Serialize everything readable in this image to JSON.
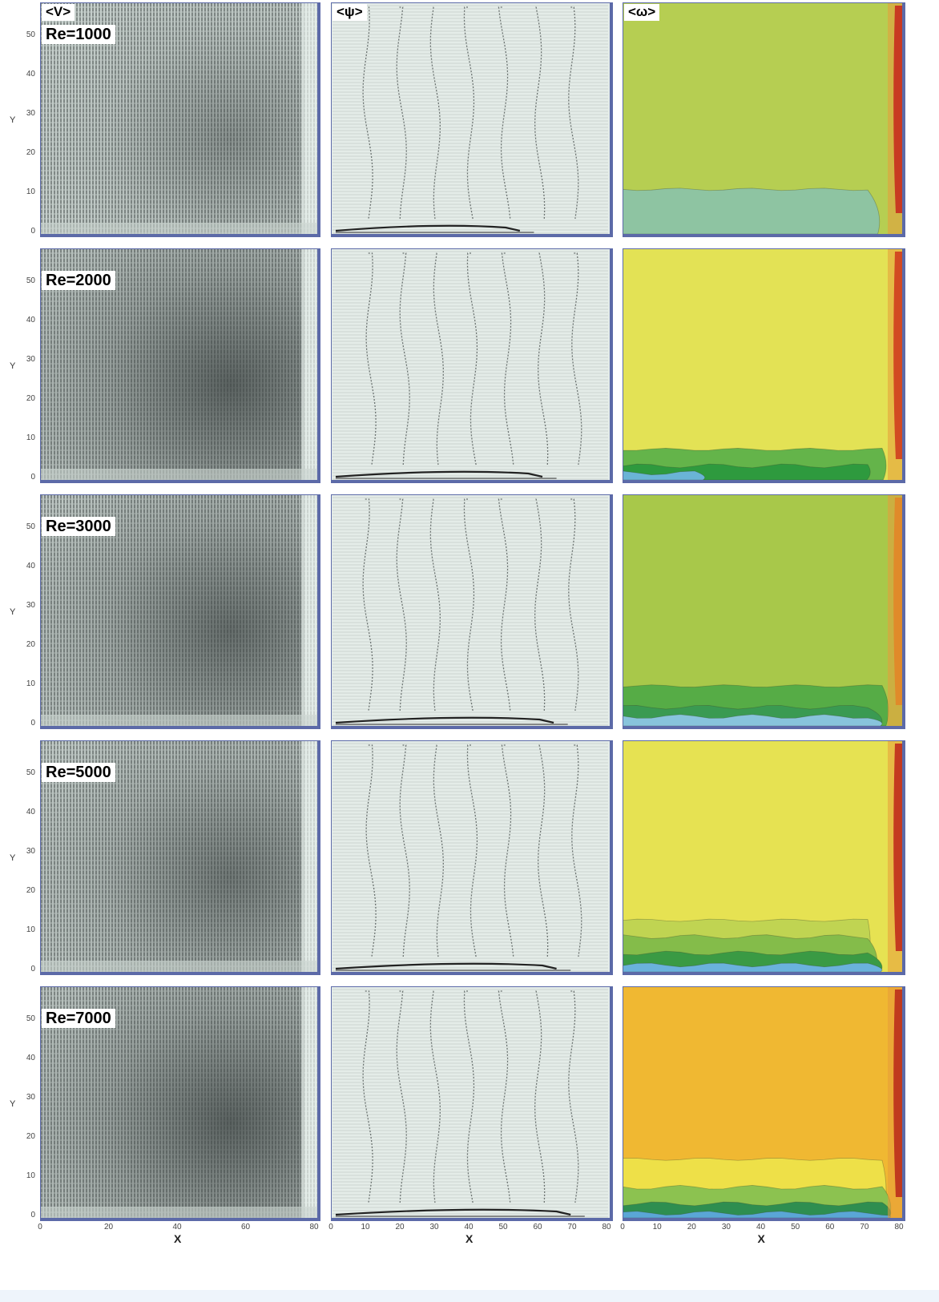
{
  "columns": [
    {
      "key": "V",
      "title": "<V>"
    },
    {
      "key": "psi",
      "title": "<ψ>"
    },
    {
      "key": "omega",
      "title": "<ω>"
    }
  ],
  "rows": [
    {
      "re": "Re=1000",
      "v_shade": 0.32,
      "omega": {
        "bg": "#b6ce52",
        "edge": "#c83a22",
        "layers": [
          {
            "color": "#8ec4a2",
            "h": 0.19,
            "len": 0.94
          }
        ]
      }
    },
    {
      "re": "Re=2000",
      "v_shade": 0.62,
      "omega": {
        "bg": "#e3e255",
        "edge": "#d24a22",
        "layers": [
          {
            "color": "#64b44a",
            "h": 0.13,
            "len": 0.96
          },
          {
            "color": "#2e9a3e",
            "h": 0.06,
            "len": 0.9
          },
          {
            "color": "#6ab4d6",
            "h": 0.03,
            "len": 0.3
          }
        ]
      }
    },
    {
      "re": "Re=3000",
      "v_shade": 0.55,
      "omega": {
        "bg": "#a8c84a",
        "edge": "#e08a2a",
        "layers": [
          {
            "color": "#56ac46",
            "h": 0.17,
            "len": 0.97
          },
          {
            "color": "#3a9a52",
            "h": 0.08,
            "len": 0.95
          },
          {
            "color": "#88c4dc",
            "h": 0.04,
            "len": 0.95
          }
        ]
      }
    },
    {
      "re": "Re=5000",
      "v_shade": 0.48,
      "omega": {
        "bg": "#e6e252",
        "edge": "#c43a20",
        "layers": [
          {
            "color": "#c0d452",
            "h": 0.22,
            "len": 0.9
          },
          {
            "color": "#84bc4a",
            "h": 0.15,
            "len": 0.93
          },
          {
            "color": "#3a9a44",
            "h": 0.08,
            "len": 0.95
          },
          {
            "color": "#6ab2dc",
            "h": 0.03,
            "len": 0.95
          }
        ]
      }
    },
    {
      "re": "Re=7000",
      "v_shade": 0.62,
      "omega": {
        "bg": "#f0b832",
        "edge": "#c03a1e",
        "layers": [
          {
            "color": "#eee048",
            "h": 0.25,
            "len": 0.96
          },
          {
            "color": "#8cc250",
            "h": 0.13,
            "len": 0.98
          },
          {
            "color": "#2e8e50",
            "h": 0.06,
            "len": 0.98
          },
          {
            "color": "#5aa6d6",
            "h": 0.02,
            "len": 0.98
          }
        ]
      }
    }
  ],
  "axes": {
    "ylabel": "Y",
    "xlabel": "X",
    "y_ticks": [
      "0",
      "10",
      "20",
      "30",
      "40",
      "50"
    ],
    "x_ticks_col1": [
      "0",
      "20",
      "40",
      "60",
      "80"
    ],
    "x_ticks_col23": [
      "0",
      "10",
      "20",
      "30",
      "40",
      "50",
      "60",
      "70",
      "80"
    ]
  },
  "colors": {
    "frame": "#5c6aa8",
    "panel_bg": "#e4ece8",
    "vector_dark": "#3f4645",
    "streamline": "#6b7270",
    "eddy": "#222222"
  }
}
